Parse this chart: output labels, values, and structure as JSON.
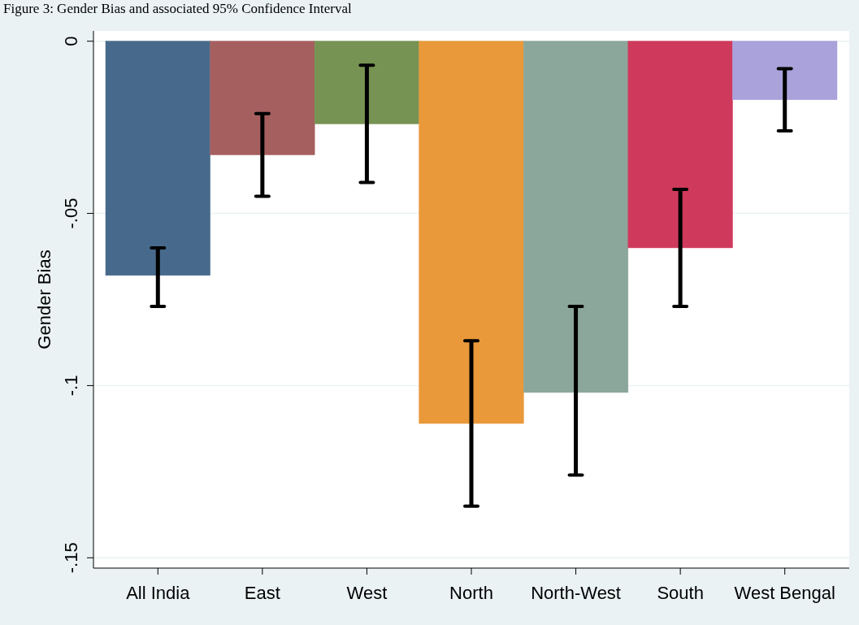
{
  "chart_data": {
    "type": "bar",
    "title": "Figure 3: Gender Bias and associated 95% Confidence Interval",
    "ylabel": "Gender Bias",
    "categories": [
      "All India",
      "East",
      "West",
      "North",
      "North-West",
      "South",
      "West Bengal"
    ],
    "values": [
      -0.068,
      -0.033,
      -0.024,
      -0.111,
      -0.102,
      -0.06,
      -0.017
    ],
    "colors": [
      "#476a8c",
      "#a65f5f",
      "#779353",
      "#e9993a",
      "#8ba69a",
      "#cf3a5c",
      "#a9a2db"
    ],
    "errors": [
      [
        -0.077,
        -0.06
      ],
      [
        -0.045,
        -0.021
      ],
      [
        -0.041,
        -0.007
      ],
      [
        -0.135,
        -0.087
      ],
      [
        -0.126,
        -0.077
      ],
      [
        -0.077,
        -0.043
      ],
      [
        -0.026,
        -0.008
      ]
    ],
    "ylim": [
      -0.153,
      0.003
    ],
    "yticks": [
      {
        "value": 0,
        "label": "0"
      },
      {
        "value": -0.05,
        "label": "-.05"
      },
      {
        "value": -0.1,
        "label": "-.1"
      },
      {
        "value": -0.15,
        "label": "-.15"
      }
    ],
    "grid": "y"
  }
}
